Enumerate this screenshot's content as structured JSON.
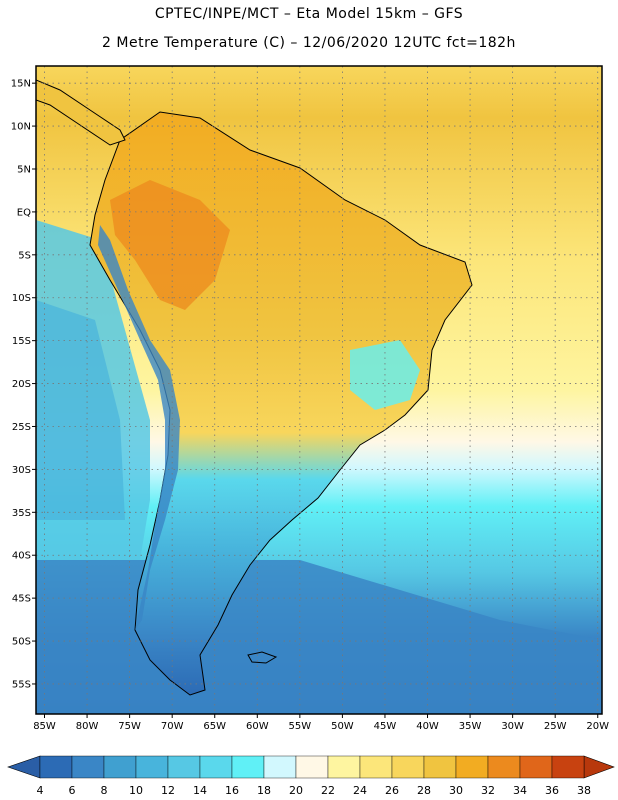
{
  "header": {
    "line1": "CPTEC/INPE/MCT –  Eta Model 15km – GFS",
    "line2": "2 Metre Temperature (C) – 12/06/2020 12UTC fct=182h"
  },
  "map": {
    "lat_labels": [
      "15N",
      "10N",
      "5N",
      "EQ",
      "5S",
      "10S",
      "15S",
      "20S",
      "25S",
      "30S",
      "35S",
      "40S",
      "45S",
      "50S",
      "55S"
    ],
    "lat_values": [
      15,
      10,
      5,
      0,
      -5,
      -10,
      -15,
      -20,
      -25,
      -30,
      -35,
      -40,
      -45,
      -50,
      -55
    ],
    "lon_labels": [
      "85W",
      "80W",
      "75W",
      "70W",
      "65W",
      "60W",
      "55W",
      "50W",
      "45W",
      "40W",
      "35W",
      "30W",
      "25W",
      "20W"
    ],
    "lon_values": [
      -85,
      -80,
      -75,
      -70,
      -65,
      -60,
      -55,
      -50,
      -45,
      -40,
      -35,
      -30,
      -25,
      -20
    ],
    "lat_range": [
      -58.5,
      17
    ],
    "lon_range": [
      -86,
      -19.5
    ],
    "grid": true
  },
  "colorbar": {
    "labels": [
      "4",
      "6",
      "8",
      "10",
      "12",
      "14",
      "16",
      "18",
      "20",
      "22",
      "24",
      "26",
      "28",
      "30",
      "32",
      "34",
      "36",
      "38"
    ],
    "colors": [
      "#2c6bb5",
      "#3a86c6",
      "#40a0d0",
      "#48b4dc",
      "#56c8e4",
      "#5ad8ec",
      "#60f0f6",
      "#d2f8fe",
      "#fff8e6",
      "#fef5a0",
      "#fce67a",
      "#f8d65c",
      "#f0c440",
      "#f2ac22",
      "#ec8a1e",
      "#e0661a",
      "#c84210"
    ],
    "under_color": "#2a5ea6",
    "over_color": "#b8380c"
  },
  "colors": {
    "ocean_north": "#f8d65c",
    "land_hot": "#f0c440",
    "andes_hot": "#ec8a1e",
    "ocean_mid": "#5ad8ec",
    "ocean_south": "#2c6bb5",
    "border": "#000000"
  }
}
